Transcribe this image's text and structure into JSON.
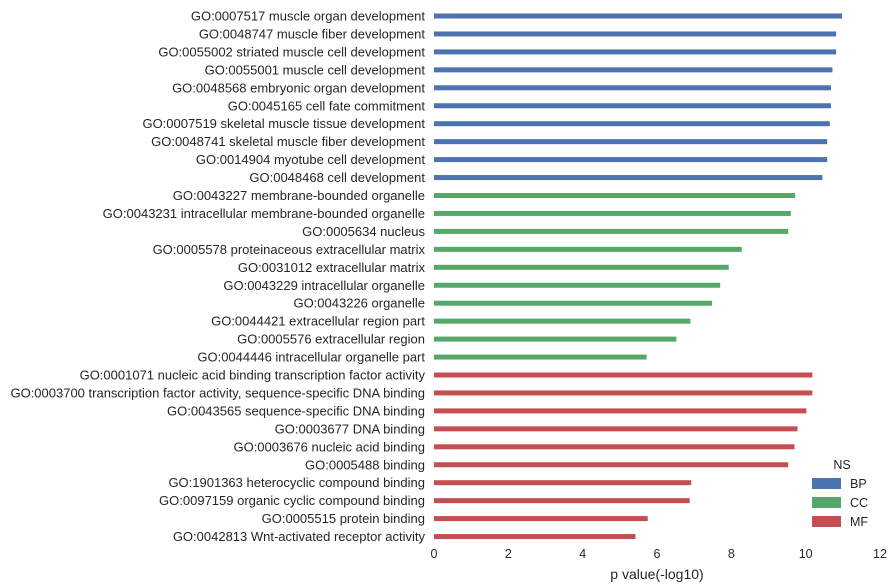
{
  "chart_data": {
    "type": "bar",
    "orientation": "horizontal",
    "xlabel": "p value(-log10)",
    "ylabel": "",
    "xlim": [
      0,
      12
    ],
    "xticks": [
      0,
      2,
      4,
      6,
      8,
      10,
      12
    ],
    "grid": false,
    "legend": {
      "title": "NS",
      "placement": "lower-right",
      "entries": [
        {
          "name": "BP",
          "color": "#4c72b0"
        },
        {
          "name": "CC",
          "color": "#55a868"
        },
        {
          "name": "MF",
          "color": "#c44e52"
        }
      ]
    },
    "categories": [
      "GO:0007517 muscle organ development",
      "GO:0048747 muscle fiber development",
      "GO:0055002 striated muscle cell development",
      "GO:0055001 muscle cell development",
      "GO:0048568 embryonic organ development",
      "GO:0045165 cell fate commitment",
      "GO:0007519 skeletal muscle tissue development",
      "GO:0048741 skeletal muscle fiber development",
      "GO:0014904 myotube cell development",
      "GO:0048468 cell development",
      "GO:0043227 membrane-bounded organelle",
      "GO:0043231 intracellular membrane-bounded organelle",
      "GO:0005634 nucleus",
      "GO:0005578 proteinaceous extracellular matrix",
      "GO:0031012 extracellular matrix",
      "GO:0043229 intracellular organelle",
      "GO:0043226 organelle",
      "GO:0044421 extracellular region part",
      "GO:0005576 extracellular region",
      "GO:0044446 intracellular organelle part",
      "GO:0001071 nucleic acid binding transcription factor activity",
      "GO:0003700 transcription factor activity, sequence-specific DNA binding",
      "GO:0043565 sequence-specific DNA binding",
      "GO:0003677 DNA binding",
      "GO:0003676 nucleic acid binding",
      "GO:0005488 binding",
      "GO:1901363 heterocyclic compound binding",
      "GO:0097159 organic cyclic compound binding",
      "GO:0005515 protein binding",
      "GO:0042813 Wnt-activated receptor activity"
    ],
    "values": [
      10.98,
      10.82,
      10.82,
      10.72,
      10.68,
      10.68,
      10.65,
      10.58,
      10.58,
      10.45,
      9.72,
      9.6,
      9.53,
      8.28,
      7.93,
      7.7,
      7.48,
      6.9,
      6.52,
      5.72,
      10.18,
      10.18,
      10.02,
      9.78,
      9.7,
      9.53,
      6.92,
      6.88,
      5.75,
      5.42
    ],
    "groups": [
      "BP",
      "BP",
      "BP",
      "BP",
      "BP",
      "BP",
      "BP",
      "BP",
      "BP",
      "BP",
      "CC",
      "CC",
      "CC",
      "CC",
      "CC",
      "CC",
      "CC",
      "CC",
      "CC",
      "CC",
      "MF",
      "MF",
      "MF",
      "MF",
      "MF",
      "MF",
      "MF",
      "MF",
      "MF",
      "MF"
    ]
  }
}
